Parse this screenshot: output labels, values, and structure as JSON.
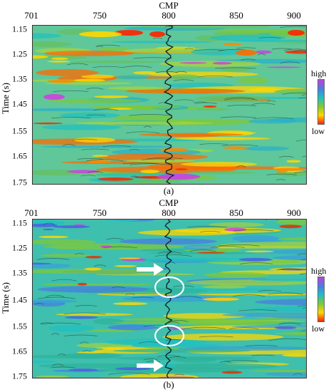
{
  "panels": [
    {
      "id": "a",
      "axis_title_top": "CMP",
      "x_ticks": [
        "701",
        "750",
        "800",
        "850",
        "900"
      ],
      "y_ticks": [
        "1.15",
        "1.25",
        "1.35",
        "1.45",
        "1.55",
        "1.65",
        "1.75"
      ],
      "ylabel": "Time (s)",
      "colorbar_high": "high",
      "colorbar_low": "low",
      "caption": "(a)",
      "palette": [
        "#ff2200",
        "#ffd700",
        "#7ec83a",
        "#20c0c0",
        "#4a7de0",
        "#d040e0"
      ]
    },
    {
      "id": "b",
      "axis_title_top": "CMP",
      "x_ticks": [
        "701",
        "750",
        "800",
        "850",
        "900"
      ],
      "y_ticks": [
        "1.15",
        "1.25",
        "1.35",
        "1.45",
        "1.55",
        "1.65",
        "1.75"
      ],
      "ylabel": "Time (s)",
      "colorbar_high": "high",
      "colorbar_low": "low",
      "caption": "(b)",
      "palette": [
        "#ff2200",
        "#ffd700",
        "#7ec83a",
        "#20c0c0",
        "#4a7de0",
        "#d040e0"
      ]
    }
  ]
}
